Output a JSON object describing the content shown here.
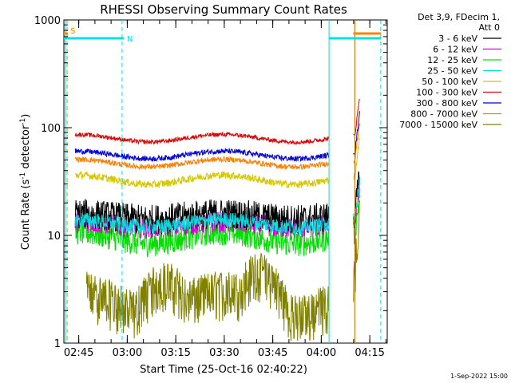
{
  "chart_data": {
    "type": "line",
    "title": "RHESSI Observing Summary Count Rates",
    "xlabel": "Start Time (25-Oct-16 02:40:22)",
    "ylabel_main": "Count Rate (s",
    "ylabel_sup1": "-1",
    "ylabel_mid": " detector",
    "ylabel_sup2": "-1",
    "ylabel_end": ")",
    "yscale": "log",
    "ylim": [
      1,
      1000
    ],
    "xlim_minutes": [
      0,
      100
    ],
    "y_ticks": [
      {
        "value": 1,
        "label": "1"
      },
      {
        "value": 10,
        "label": "10"
      },
      {
        "value": 100,
        "label": "100"
      },
      {
        "value": 1000,
        "label": "1000"
      }
    ],
    "x_ticks": [
      {
        "minute": 4.6,
        "label": "02:45"
      },
      {
        "minute": 19.6,
        "label": "03:00"
      },
      {
        "minute": 34.6,
        "label": "03:15"
      },
      {
        "minute": 49.6,
        "label": "03:30"
      },
      {
        "minute": 64.6,
        "label": "03:45"
      },
      {
        "minute": 79.6,
        "label": "04:00"
      },
      {
        "minute": 94.6,
        "label": "04:15"
      }
    ],
    "legend_header": [
      "Det 3,9, FDecim 1,",
      "Att 0"
    ],
    "legend_position": "right",
    "series": [
      {
        "name": "3 - 6 keV",
        "color": "#000000",
        "base": 15,
        "amp": 0.06,
        "noise": 0.14,
        "start": 3.5
      },
      {
        "name": "6 - 12 keV",
        "color": "#d000d0",
        "base": 12.5,
        "amp": 0.06,
        "noise": 0.1,
        "start": 3.5
      },
      {
        "name": "12 - 25 keV",
        "color": "#00e000",
        "base": 9.5,
        "amp": 0.12,
        "noise": 0.12,
        "start": 3.5
      },
      {
        "name": "25 - 50 keV",
        "color": "#00e0e0",
        "base": 13,
        "amp": 0.08,
        "noise": 0.07,
        "start": 3.5
      },
      {
        "name": "50 - 100 keV",
        "color": "#d4c800",
        "base": 33,
        "amp": 0.1,
        "noise": 0.035,
        "start": 3.5
      },
      {
        "name": "100 - 300 keV",
        "color": "#e00000",
        "base": 80,
        "amp": 0.08,
        "noise": 0.02,
        "start": 3.5
      },
      {
        "name": "300 - 800 keV",
        "color": "#0000e0",
        "base": 56,
        "amp": 0.08,
        "noise": 0.025,
        "start": 3.5
      },
      {
        "name": "800 - 7000 keV",
        "color": "#ff8000",
        "base": 47,
        "amp": 0.08,
        "noise": 0.025,
        "start": 3.5
      },
      {
        "name": "7000 - 15000 keV",
        "color": "#808000",
        "base": 2.5,
        "amp": 0.25,
        "noise": 0.2,
        "start": 7.0
      }
    ],
    "markers": [
      {
        "label": "S",
        "color": "#ff8000",
        "minute": 1.0,
        "row": "top",
        "segment": [
          0,
          1.2
        ]
      },
      {
        "label": "N",
        "color": "#00e0e0",
        "minute": 18.5,
        "row": "mid",
        "segment": [
          0,
          17.5
        ]
      }
    ],
    "vertical_lines": [
      {
        "minute": 0.5,
        "color": "#00e0e0",
        "style": "solid"
      },
      {
        "minute": 1.0,
        "color": "#ff8000",
        "style": "dashed"
      },
      {
        "minute": 18.0,
        "color": "#00e0e0",
        "style": "dashed"
      },
      {
        "minute": 82.0,
        "color": "#00e0e0",
        "style": "solid"
      },
      {
        "minute": 90.0,
        "color": "#c07000",
        "style": "solid"
      },
      {
        "minute": 98.0,
        "color": "#00e0e0",
        "style": "dashed"
      }
    ],
    "status_bars": [
      {
        "color": "#00e0e0",
        "from": 0,
        "to": 18.5,
        "row": "mid"
      },
      {
        "color": "#00e0e0",
        "from": 82.0,
        "to": 98.0,
        "row": "mid"
      },
      {
        "color": "#ff8000",
        "from": 89.5,
        "to": 98.0,
        "row": "top"
      }
    ],
    "gaps_minutes": [
      [
        82.0,
        89.5
      ]
    ],
    "rise_start_minute": 90.0,
    "data_end_minute": 91.5
  },
  "footer": "1-Sep-2022 15:00"
}
